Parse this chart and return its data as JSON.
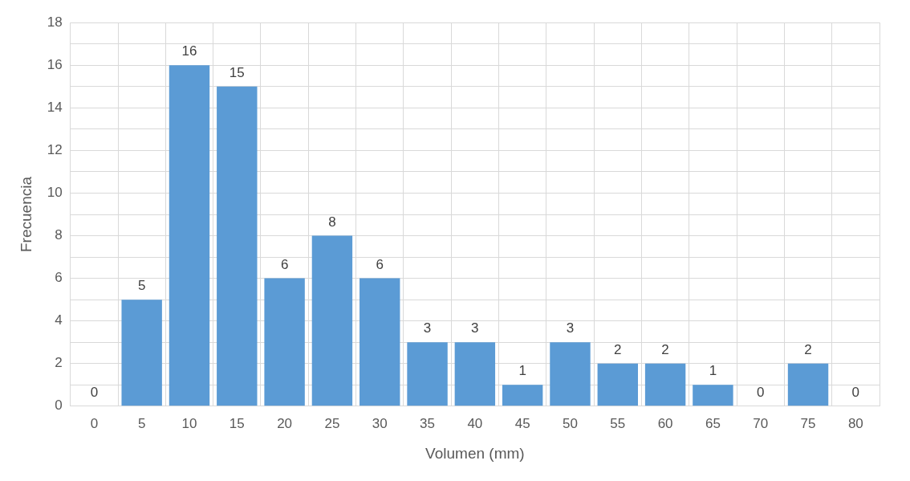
{
  "chart_data": {
    "type": "bar",
    "xlabel": "Volumen (mm)",
    "ylabel": "Frecuencia",
    "categories": [
      "0",
      "5",
      "10",
      "15",
      "20",
      "25",
      "30",
      "35",
      "40",
      "45",
      "50",
      "55",
      "60",
      "65",
      "70",
      "75",
      "80"
    ],
    "values": [
      0,
      5,
      16,
      15,
      6,
      8,
      6,
      3,
      3,
      1,
      3,
      2,
      2,
      1,
      0,
      2,
      0
    ],
    "color": "#5b9bd5",
    "ylim": [
      0,
      18
    ],
    "yticks": [
      0,
      {
        "value": 1,
        "label": null
      },
      2,
      {
        "value": 3,
        "label": null
      },
      4,
      {
        "value": 5,
        "label": null
      },
      6,
      {
        "value": 7,
        "label": null
      },
      8,
      {
        "value": 9,
        "label": null
      },
      10,
      {
        "value": 11,
        "label": null
      },
      12,
      {
        "value": 13,
        "label": null
      },
      14,
      {
        "value": 15,
        "label": null
      },
      16,
      {
        "value": 17,
        "label": null
      },
      18
    ],
    "grid": true,
    "data_labels": true
  }
}
